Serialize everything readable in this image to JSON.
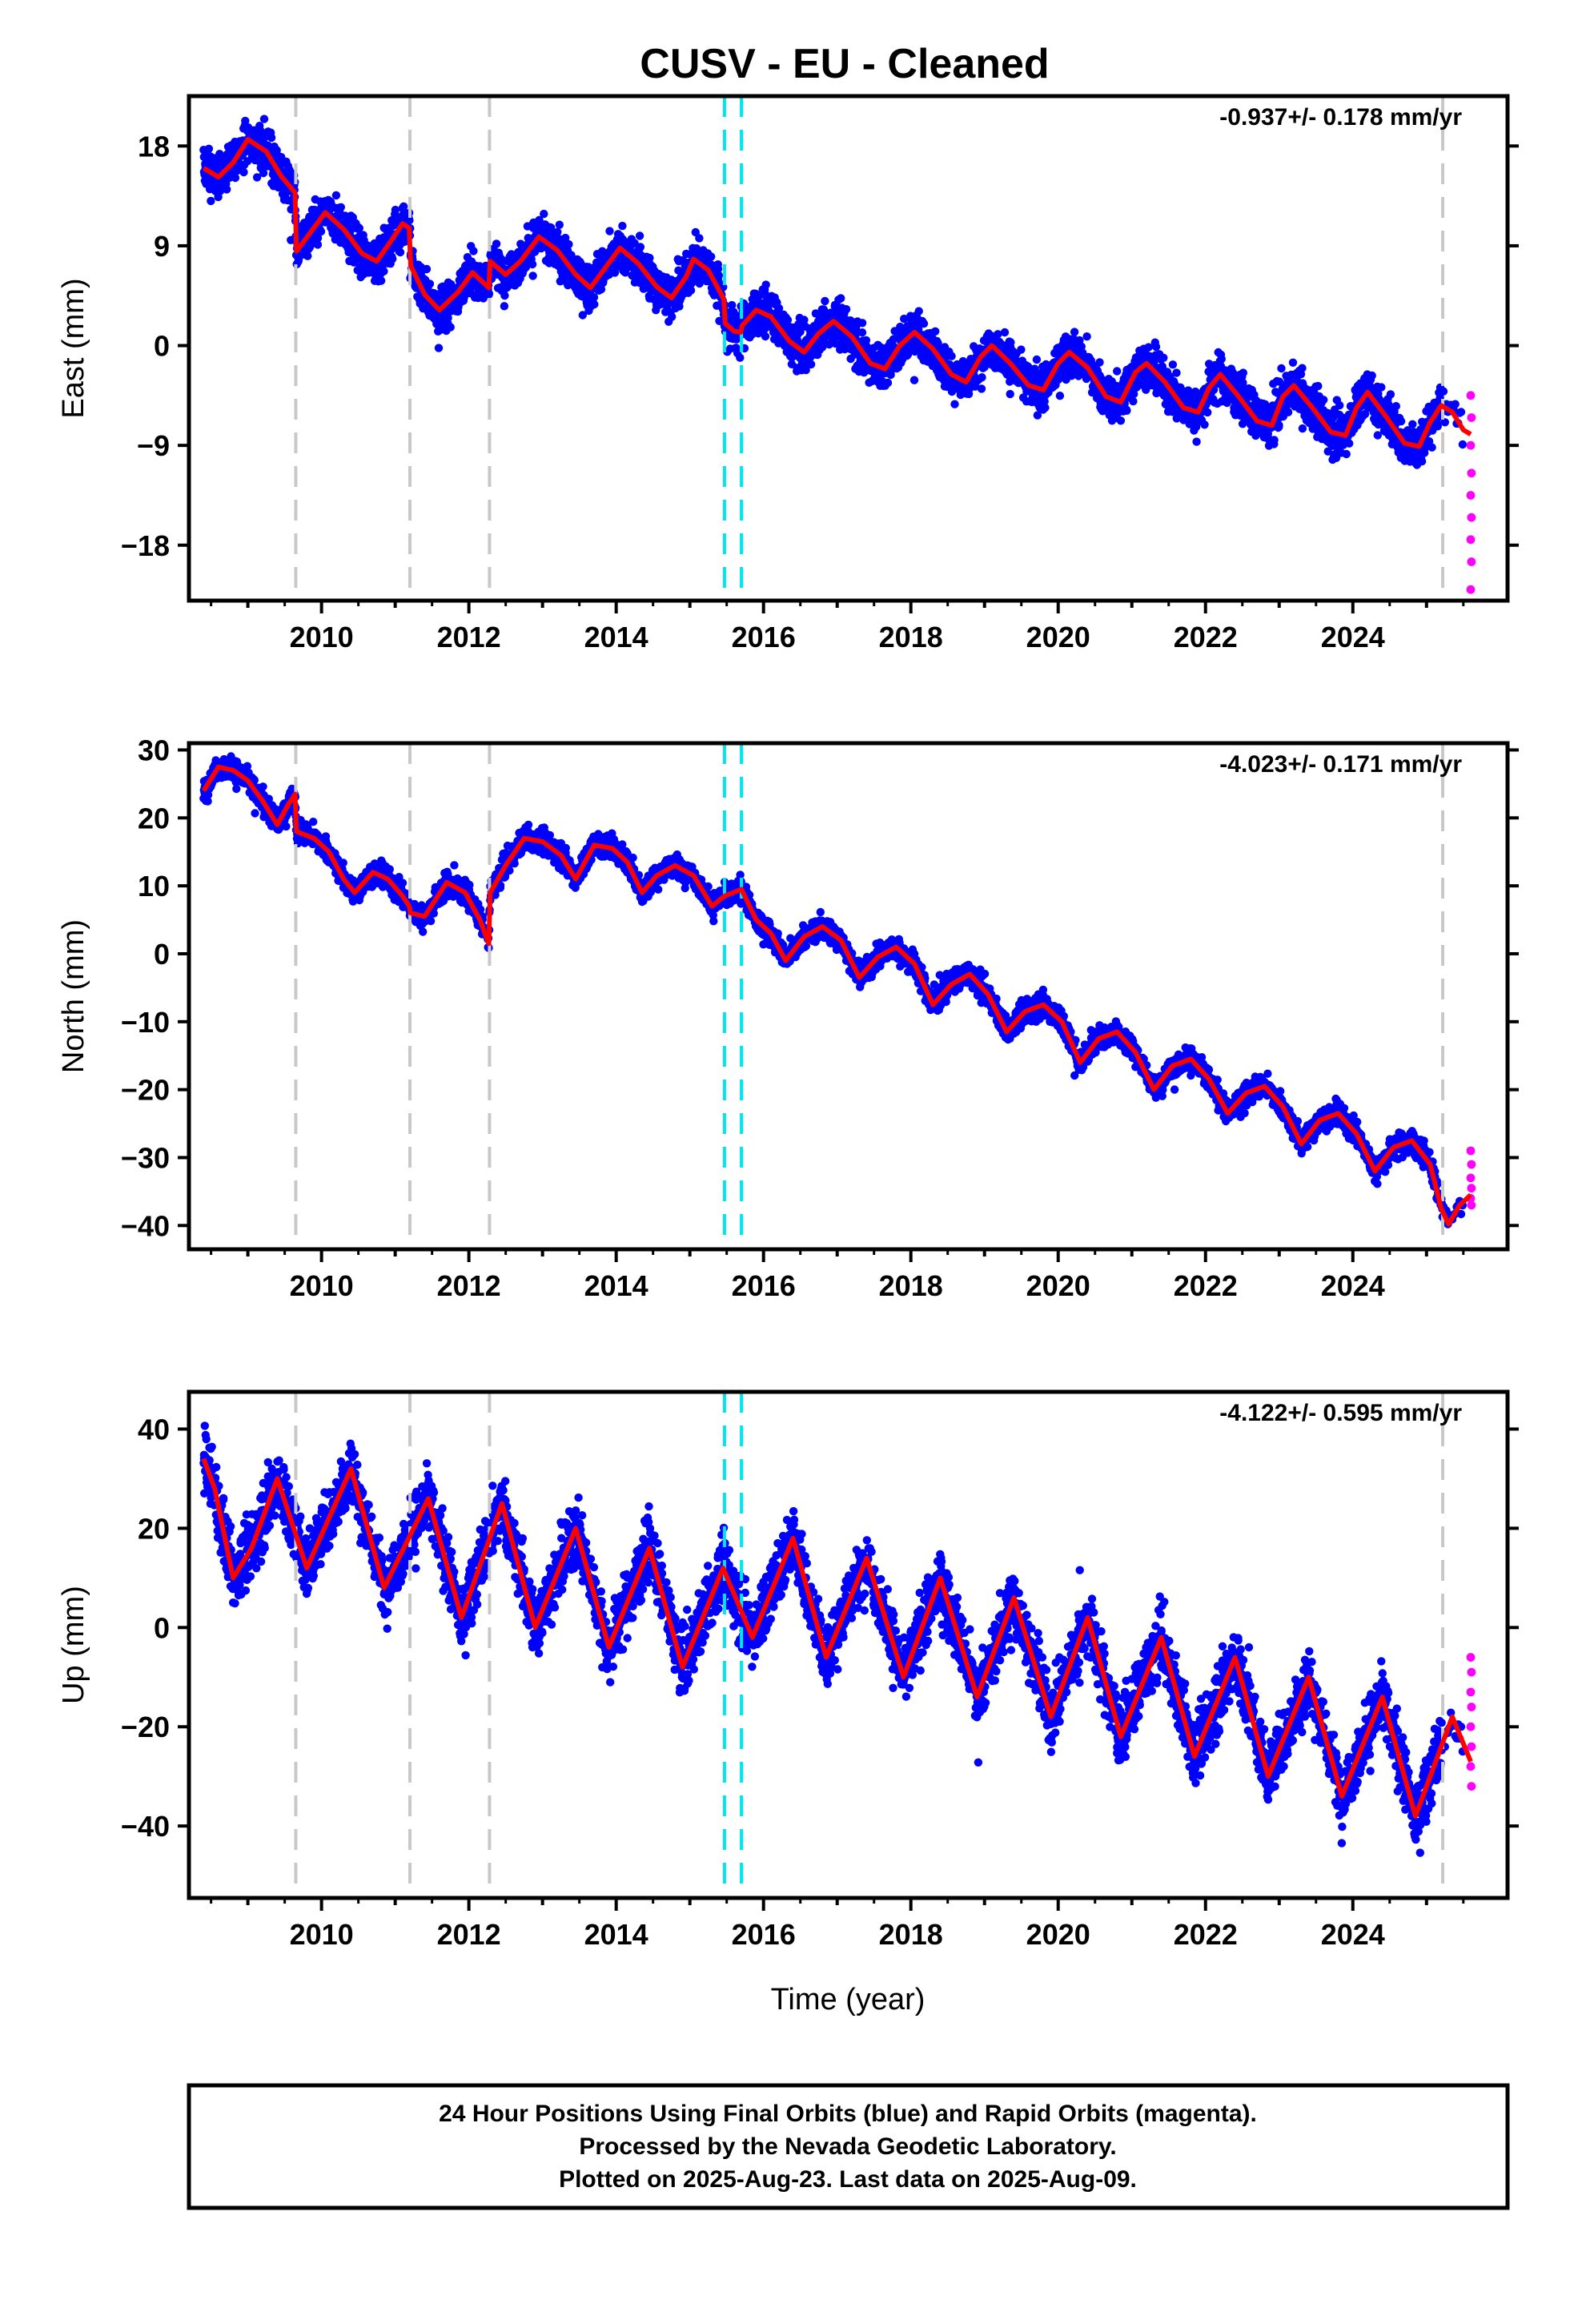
{
  "chart_data": {
    "type": "scatter",
    "title": "CUSV  - EU - Cleaned",
    "xlabel": "Time (year)",
    "xlim": [
      2008.2,
      2026.1
    ],
    "xticks": [
      2010,
      2012,
      2014,
      2016,
      2018,
      2020,
      2022,
      2024
    ],
    "data_start": 2008.4,
    "data_end": 2025.6,
    "rapid_start": 2025.22,
    "equipment_changes": [
      2009.65,
      2011.2,
      2012.28,
      2025.22
    ],
    "earthquake_offsets": [
      2015.47,
      2015.7
    ],
    "legend_colors": {
      "final": "#0000ff",
      "rapid": "#ff00ff",
      "model": "#ff0000",
      "equipment": "#c8c8c8",
      "earthquake": "#00e5ee"
    },
    "panels": [
      {
        "id": "east",
        "ylabel": "East (mm)",
        "ylim": [
          -23,
          22.5
        ],
        "yticks": [
          18,
          9,
          0,
          -9,
          -18
        ],
        "ytick_labels": [
          "18",
          "9",
          "0",
          "−9",
          "−18"
        ],
        "rate_text": "-0.937+/- 0.178 mm/yr",
        "noise": 1.4,
        "rapid_values": [
          -4.5,
          -6.5,
          -9.0,
          -11.5,
          -13.5,
          -15.5,
          -17.5,
          -19.5,
          -22.0
        ],
        "model": [
          [
            2008.4,
            16.0
          ],
          [
            2008.6,
            15.2
          ],
          [
            2008.8,
            16.5
          ],
          [
            2009.0,
            18.6
          ],
          [
            2009.25,
            17.5
          ],
          [
            2009.45,
            15.3
          ],
          [
            2009.64,
            13.8
          ],
          [
            2009.66,
            8.5
          ],
          [
            2009.85,
            10.2
          ],
          [
            2010.05,
            12.0
          ],
          [
            2010.3,
            10.5
          ],
          [
            2010.55,
            8.3
          ],
          [
            2010.75,
            7.6
          ],
          [
            2010.95,
            9.5
          ],
          [
            2011.1,
            11.0
          ],
          [
            2011.19,
            10.6
          ],
          [
            2011.21,
            7.2
          ],
          [
            2011.4,
            4.6
          ],
          [
            2011.6,
            3.2
          ],
          [
            2011.85,
            4.8
          ],
          [
            2012.05,
            6.6
          ],
          [
            2012.27,
            5.2
          ],
          [
            2012.29,
            7.6
          ],
          [
            2012.5,
            6.4
          ],
          [
            2012.7,
            7.6
          ],
          [
            2012.95,
            9.8
          ],
          [
            2013.2,
            8.6
          ],
          [
            2013.45,
            6.4
          ],
          [
            2013.65,
            5.2
          ],
          [
            2013.85,
            7.0
          ],
          [
            2014.05,
            8.8
          ],
          [
            2014.3,
            7.4
          ],
          [
            2014.55,
            5.3
          ],
          [
            2014.75,
            4.3
          ],
          [
            2014.95,
            6.2
          ],
          [
            2015.05,
            7.8
          ],
          [
            2015.25,
            6.8
          ],
          [
            2015.46,
            4.2
          ],
          [
            2015.48,
            2.0
          ],
          [
            2015.6,
            1.3
          ],
          [
            2015.69,
            1.2
          ],
          [
            2015.71,
            1.8
          ],
          [
            2015.9,
            3.2
          ],
          [
            2016.1,
            2.6
          ],
          [
            2016.35,
            0.4
          ],
          [
            2016.55,
            -0.6
          ],
          [
            2016.75,
            1.1
          ],
          [
            2016.95,
            2.2
          ],
          [
            2017.2,
            0.8
          ],
          [
            2017.45,
            -1.6
          ],
          [
            2017.65,
            -2.1
          ],
          [
            2017.85,
            0.0
          ],
          [
            2018.05,
            1.2
          ],
          [
            2018.3,
            -0.3
          ],
          [
            2018.55,
            -2.6
          ],
          [
            2018.75,
            -3.3
          ],
          [
            2018.95,
            -1.0
          ],
          [
            2019.1,
            0.0
          ],
          [
            2019.35,
            -1.6
          ],
          [
            2019.6,
            -3.6
          ],
          [
            2019.8,
            -4.0
          ],
          [
            2020.0,
            -1.6
          ],
          [
            2020.15,
            -0.6
          ],
          [
            2020.4,
            -2.0
          ],
          [
            2020.65,
            -4.6
          ],
          [
            2020.85,
            -5.1
          ],
          [
            2021.05,
            -2.4
          ],
          [
            2021.2,
            -1.6
          ],
          [
            2021.45,
            -3.3
          ],
          [
            2021.7,
            -5.6
          ],
          [
            2021.9,
            -6.0
          ],
          [
            2022.05,
            -3.8
          ],
          [
            2022.2,
            -2.6
          ],
          [
            2022.45,
            -4.6
          ],
          [
            2022.7,
            -6.8
          ],
          [
            2022.9,
            -7.2
          ],
          [
            2023.05,
            -4.6
          ],
          [
            2023.2,
            -3.6
          ],
          [
            2023.45,
            -5.6
          ],
          [
            2023.7,
            -7.8
          ],
          [
            2023.9,
            -8.1
          ],
          [
            2024.05,
            -5.6
          ],
          [
            2024.2,
            -4.2
          ],
          [
            2024.45,
            -6.4
          ],
          [
            2024.7,
            -8.8
          ],
          [
            2024.9,
            -9.1
          ],
          [
            2025.05,
            -6.9
          ],
          [
            2025.2,
            -5.4
          ],
          [
            2025.35,
            -6.0
          ],
          [
            2025.5,
            -7.6
          ],
          [
            2025.6,
            -8.0
          ]
        ]
      },
      {
        "id": "north",
        "ylabel": "North (mm)",
        "ylim": [
          -43.5,
          31
        ],
        "yticks": [
          30,
          20,
          10,
          0,
          -10,
          -20,
          -30,
          -40
        ],
        "ytick_labels": [
          "30",
          "20",
          "10",
          "0",
          "−10",
          "−20",
          "−30",
          "−40"
        ],
        "rate_text": "-4.023+/- 0.171 mm/yr",
        "noise": 1.2,
        "rapid_values": [
          -29.0,
          -31.0,
          -33.0,
          -34.5,
          -36.0,
          -37.0
        ],
        "model": [
          [
            2008.4,
            24.0
          ],
          [
            2008.6,
            27.5
          ],
          [
            2008.8,
            27.0
          ],
          [
            2009.0,
            25.5
          ],
          [
            2009.2,
            22.5
          ],
          [
            2009.4,
            19.0
          ],
          [
            2009.55,
            22.0
          ],
          [
            2009.64,
            23.5
          ],
          [
            2009.66,
            18.0
          ],
          [
            2009.9,
            17.0
          ],
          [
            2010.1,
            15.0
          ],
          [
            2010.3,
            11.0
          ],
          [
            2010.45,
            9.0
          ],
          [
            2010.7,
            12.0
          ],
          [
            2010.9,
            11.0
          ],
          [
            2011.1,
            8.5
          ],
          [
            2011.19,
            7.0
          ],
          [
            2011.21,
            6.0
          ],
          [
            2011.4,
            5.5
          ],
          [
            2011.7,
            10.5
          ],
          [
            2011.95,
            9.0
          ],
          [
            2012.15,
            5.0
          ],
          [
            2012.27,
            1.5
          ],
          [
            2012.29,
            9.0
          ],
          [
            2012.5,
            13.0
          ],
          [
            2012.75,
            17.0
          ],
          [
            2013.0,
            16.5
          ],
          [
            2013.25,
            14.5
          ],
          [
            2013.45,
            11.0
          ],
          [
            2013.7,
            16.0
          ],
          [
            2013.95,
            15.5
          ],
          [
            2014.15,
            13.5
          ],
          [
            2014.35,
            9.0
          ],
          [
            2014.55,
            11.5
          ],
          [
            2014.8,
            13.0
          ],
          [
            2015.05,
            11.5
          ],
          [
            2015.3,
            7.0
          ],
          [
            2015.47,
            8.5
          ],
          [
            2015.7,
            9.5
          ],
          [
            2015.9,
            5.0
          ],
          [
            2016.1,
            3.0
          ],
          [
            2016.3,
            -1.0
          ],
          [
            2016.55,
            2.5
          ],
          [
            2016.8,
            4.0
          ],
          [
            2017.05,
            2.0
          ],
          [
            2017.3,
            -3.5
          ],
          [
            2017.55,
            -0.5
          ],
          [
            2017.8,
            1.0
          ],
          [
            2018.05,
            -1.5
          ],
          [
            2018.3,
            -7.5
          ],
          [
            2018.55,
            -4.5
          ],
          [
            2018.8,
            -3.0
          ],
          [
            2019.05,
            -6.0
          ],
          [
            2019.3,
            -11.5
          ],
          [
            2019.55,
            -8.5
          ],
          [
            2019.8,
            -7.5
          ],
          [
            2020.05,
            -10.0
          ],
          [
            2020.3,
            -16.0
          ],
          [
            2020.55,
            -12.5
          ],
          [
            2020.8,
            -11.5
          ],
          [
            2021.05,
            -14.5
          ],
          [
            2021.3,
            -20.0
          ],
          [
            2021.55,
            -16.5
          ],
          [
            2021.8,
            -15.5
          ],
          [
            2022.05,
            -18.5
          ],
          [
            2022.3,
            -23.5
          ],
          [
            2022.55,
            -20.5
          ],
          [
            2022.8,
            -19.5
          ],
          [
            2023.05,
            -22.5
          ],
          [
            2023.3,
            -28.0
          ],
          [
            2023.55,
            -24.5
          ],
          [
            2023.8,
            -23.5
          ],
          [
            2024.05,
            -26.5
          ],
          [
            2024.3,
            -32.0
          ],
          [
            2024.55,
            -28.5
          ],
          [
            2024.8,
            -27.5
          ],
          [
            2025.05,
            -31.0
          ],
          [
            2025.2,
            -37.5
          ],
          [
            2025.3,
            -39.8
          ],
          [
            2025.45,
            -37.0
          ],
          [
            2025.6,
            -35.5
          ]
        ]
      },
      {
        "id": "up",
        "ylabel": "Up (mm)",
        "ylim": [
          -54.5,
          47.5
        ],
        "yticks": [
          40,
          20,
          0,
          -20,
          -40
        ],
        "ytick_labels": [
          "40",
          "20",
          "0",
          "−20",
          "−40"
        ],
        "rate_text": "-4.122+/- 0.595 mm/yr",
        "noise": 4.5,
        "rapid_values": [
          -6.0,
          -9.0,
          -13.0,
          -16.0,
          -20.0,
          -24.0,
          -28.0,
          -32.0
        ],
        "model": [
          [
            2008.4,
            34.0
          ],
          [
            2008.55,
            28.0
          ],
          [
            2008.8,
            10.0
          ],
          [
            2009.05,
            16.0
          ],
          [
            2009.4,
            30.0
          ],
          [
            2009.8,
            12.0
          ],
          [
            2010.4,
            32.0
          ],
          [
            2010.85,
            8.0
          ],
          [
            2011.45,
            26.0
          ],
          [
            2011.9,
            2.0
          ],
          [
            2012.45,
            25.0
          ],
          [
            2012.9,
            0.0
          ],
          [
            2013.45,
            20.0
          ],
          [
            2013.9,
            -4.0
          ],
          [
            2014.45,
            16.0
          ],
          [
            2014.9,
            -8.0
          ],
          [
            2015.45,
            12.0
          ],
          [
            2015.85,
            -2.0
          ],
          [
            2016.4,
            18.0
          ],
          [
            2016.85,
            -6.0
          ],
          [
            2017.4,
            14.0
          ],
          [
            2017.9,
            -10.0
          ],
          [
            2018.4,
            10.0
          ],
          [
            2018.9,
            -14.0
          ],
          [
            2019.4,
            6.0
          ],
          [
            2019.9,
            -18.0
          ],
          [
            2020.4,
            2.0
          ],
          [
            2020.85,
            -22.0
          ],
          [
            2021.4,
            -2.0
          ],
          [
            2021.85,
            -26.0
          ],
          [
            2022.4,
            -6.0
          ],
          [
            2022.85,
            -30.0
          ],
          [
            2023.4,
            -10.0
          ],
          [
            2023.85,
            -34.0
          ],
          [
            2024.4,
            -14.0
          ],
          [
            2024.85,
            -38.0
          ],
          [
            2025.35,
            -18.0
          ],
          [
            2025.6,
            -27.0
          ]
        ]
      }
    ],
    "caption": [
      "24 Hour Positions Using Final Orbits (blue) and Rapid Orbits (magenta).",
      "Processed by the Nevada Geodetic Laboratory.",
      "Plotted on 2025-Aug-23. Last data on 2025-Aug-09."
    ]
  }
}
